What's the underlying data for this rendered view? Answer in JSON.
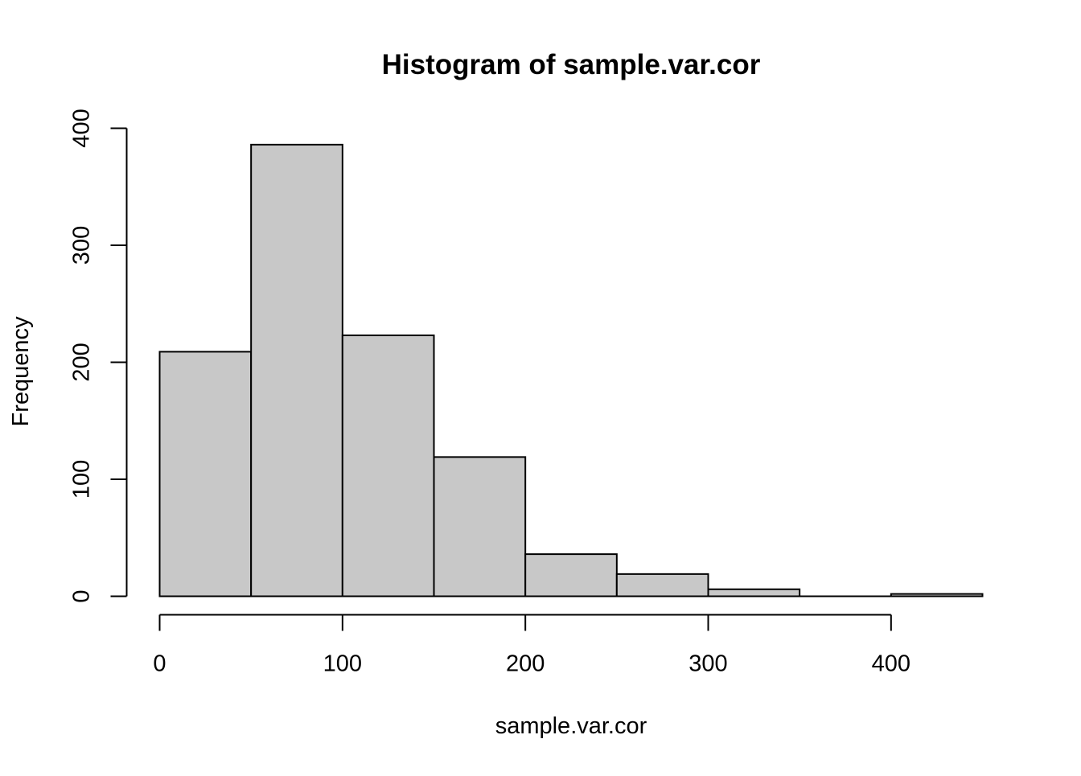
{
  "chart_data": {
    "type": "bar",
    "subtype": "histogram",
    "title": "Histogram of sample.var.cor",
    "xlabel": "sample.var.cor",
    "ylabel": "Frequency",
    "bins": [
      {
        "x0": 0,
        "x1": 50,
        "count": 209
      },
      {
        "x0": 50,
        "x1": 100,
        "count": 386
      },
      {
        "x0": 100,
        "x1": 150,
        "count": 223
      },
      {
        "x0": 150,
        "x1": 200,
        "count": 119
      },
      {
        "x0": 200,
        "x1": 250,
        "count": 36
      },
      {
        "x0": 250,
        "x1": 300,
        "count": 19
      },
      {
        "x0": 300,
        "x1": 350,
        "count": 6
      },
      {
        "x0": 350,
        "x1": 400,
        "count": 0
      },
      {
        "x0": 400,
        "x1": 450,
        "count": 2
      }
    ],
    "xlim": [
      0,
      450
    ],
    "ylim": [
      0,
      400
    ],
    "x_ticks": [
      0,
      100,
      200,
      300,
      400
    ],
    "y_ticks": [
      0,
      100,
      200,
      300,
      400
    ],
    "bar_color": "#c8c8c8",
    "edge_color": "#000000",
    "grid": false,
    "legend": "none"
  }
}
